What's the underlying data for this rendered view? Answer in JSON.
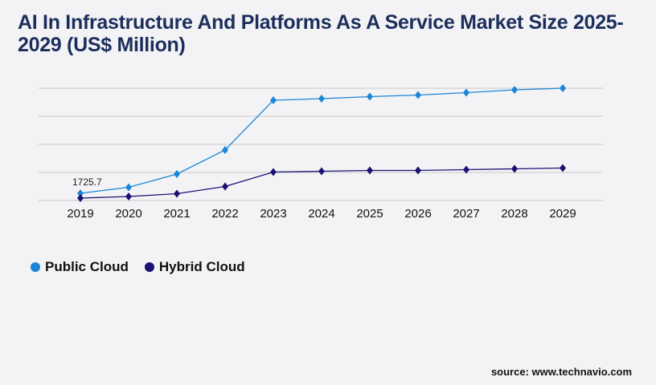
{
  "title": "AI In Infrastructure And Platforms As A Service Market Size 2025-2029 (US$ Million)",
  "source": "source: www.technavio.com",
  "chart_data": {
    "type": "line",
    "title": "AI In Infrastructure And Platforms As A Service Market Size 2025-2029 (US$ Million)",
    "x": [
      "2019",
      "2020",
      "2021",
      "2022",
      "2023",
      "2024",
      "2025",
      "2026",
      "2027",
      "2028",
      "2029"
    ],
    "ylim": [
      0,
      26840
    ],
    "grid": true,
    "legend_position": "bottom-left",
    "series": [
      {
        "name": "Public Cloud",
        "color": "#1a86d6",
        "values": [
          1725.7,
          3160,
          6330,
          12080,
          23960,
          24350,
          24830,
          25210,
          25780,
          26450,
          26840
        ]
      },
      {
        "name": "Hybrid Cloud",
        "color": "#1a1273",
        "values": [
          575,
          960,
          1630,
          3360,
          6800,
          7000,
          7190,
          7190,
          7380,
          7570,
          7760
        ]
      }
    ],
    "annotations": [
      {
        "series": "Public Cloud",
        "x": "2019",
        "label": "1725.7"
      }
    ]
  }
}
